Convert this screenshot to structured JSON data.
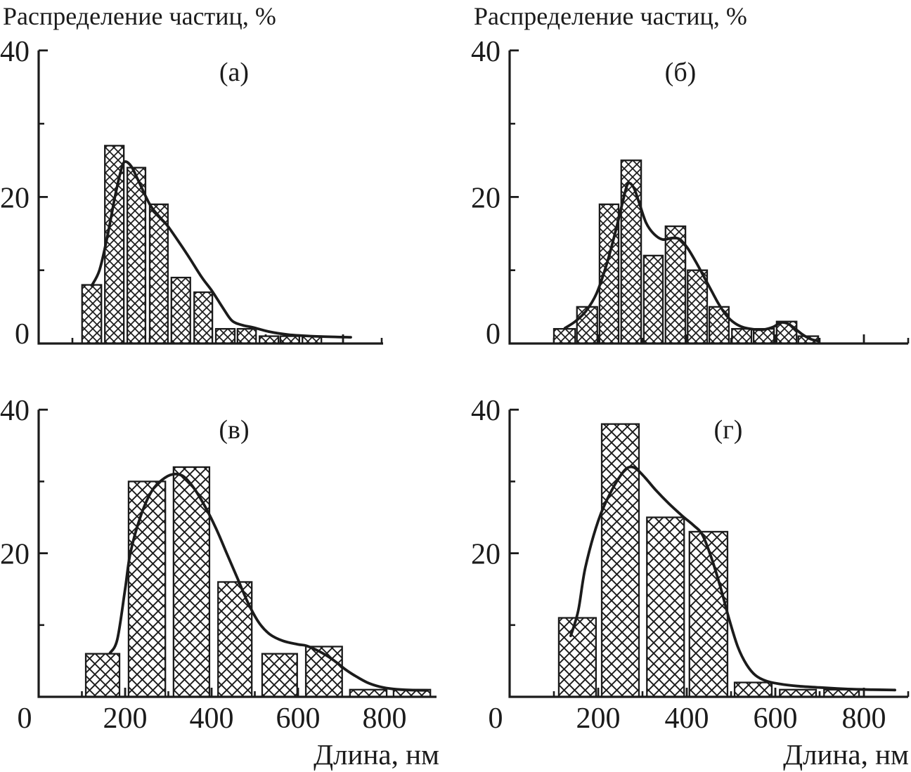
{
  "shared": {
    "y_axis_title": "Распределение частиц, %",
    "x_axis_title": "Длина, нм",
    "ink_color": "#1b1b1b",
    "background_color": "#ffffff"
  },
  "chart_data": {
    "type": "bar",
    "x_unit": "нм",
    "y_unit": "%",
    "legend": "none",
    "grid": false,
    "panels": [
      {
        "id": "a",
        "label": "(а)",
        "xlim": [
          0,
          900
        ],
        "ylim": [
          0,
          40
        ],
        "x_major_ticks": [
          200,
          400,
          600,
          800
        ],
        "x_minor_ticks": [
          100,
          300,
          500,
          700,
          900
        ],
        "y_labeled_ticks": [
          40,
          20,
          0
        ],
        "y_major_ticks": [
          20,
          40
        ],
        "y_minor_ticks": [
          10,
          30
        ],
        "x_tick_labels": [],
        "bars": [
          [
            125,
            175,
            8
          ],
          [
            184,
            233,
            27
          ],
          [
            242,
            289,
            24
          ],
          [
            300,
            347,
            19
          ],
          [
            356,
            405,
            9
          ],
          [
            415,
            462,
            7
          ],
          [
            471,
            520,
            2
          ],
          [
            527,
            575,
            2
          ],
          [
            584,
            633,
            1
          ],
          [
            638,
            687,
            1
          ],
          [
            695,
            744,
            1
          ]
        ],
        "curve": [
          [
            150,
            7.9
          ],
          [
            170,
            10
          ],
          [
            190,
            14.5
          ],
          [
            210,
            20
          ],
          [
            225,
            23.5
          ],
          [
            235,
            24.8
          ],
          [
            252,
            24.2
          ],
          [
            270,
            22.3
          ],
          [
            300,
            19
          ],
          [
            325,
            17.3
          ],
          [
            347,
            16
          ],
          [
            380,
            13.5
          ],
          [
            405,
            11.5
          ],
          [
            435,
            9
          ],
          [
            462,
            7.1
          ],
          [
            490,
            4.8
          ],
          [
            513,
            3.1
          ],
          [
            540,
            2.5
          ],
          [
            567,
            2.2
          ],
          [
            610,
            1.6
          ],
          [
            660,
            1.2
          ],
          [
            720,
            1
          ],
          [
            780,
            0.9
          ],
          [
            820,
            0.85
          ]
        ]
      },
      {
        "id": "b",
        "label": "(б)",
        "xlim": [
          0,
          900
        ],
        "ylim": [
          0,
          40
        ],
        "x_major_ticks": [
          200,
          400,
          600,
          800
        ],
        "x_minor_ticks": [
          100,
          300,
          500,
          700,
          900
        ],
        "y_labeled_ticks": [
          40,
          20,
          0
        ],
        "y_major_ticks": [
          20,
          40
        ],
        "y_minor_ticks": [
          10,
          30
        ],
        "x_tick_labels": [],
        "bars": [
          [
            100,
            148,
            2
          ],
          [
            152,
            198,
            5
          ],
          [
            203,
            246,
            19
          ],
          [
            252,
            297,
            25
          ],
          [
            303,
            346,
            12
          ],
          [
            352,
            397,
            16
          ],
          [
            402,
            446,
            10
          ],
          [
            451,
            495,
            5
          ],
          [
            502,
            546,
            2
          ],
          [
            551,
            597,
            2
          ],
          [
            603,
            648,
            3
          ],
          [
            652,
            697,
            1
          ]
        ],
        "curve": [
          [
            125,
            2.1
          ],
          [
            148,
            3
          ],
          [
            172,
            4.4
          ],
          [
            196,
            6.8
          ],
          [
            220,
            11
          ],
          [
            242,
            16
          ],
          [
            256,
            19.5
          ],
          [
            267,
            21.8
          ],
          [
            280,
            21.3
          ],
          [
            292,
            19.3
          ],
          [
            308,
            16.5
          ],
          [
            325,
            15
          ],
          [
            345,
            14.2
          ],
          [
            368,
            14.4
          ],
          [
            385,
            14.2
          ],
          [
            402,
            13
          ],
          [
            420,
            11.2
          ],
          [
            438,
            9.2
          ],
          [
            455,
            7.3
          ],
          [
            472,
            5.4
          ],
          [
            490,
            3.8
          ],
          [
            508,
            2.8
          ],
          [
            528,
            2.2
          ],
          [
            550,
            1.95
          ],
          [
            572,
            1.9
          ],
          [
            595,
            2.25
          ],
          [
            612,
            2.85
          ],
          [
            628,
            2.7
          ],
          [
            645,
            2
          ],
          [
            662,
            1.2
          ],
          [
            680,
            0.6
          ],
          [
            697,
            0.35
          ]
        ]
      },
      {
        "id": "v",
        "label": "(в)",
        "xlim": [
          0,
          920
        ],
        "ylim": [
          0,
          40
        ],
        "x_major_ticks": [
          200,
          400,
          600,
          800
        ],
        "x_minor_ticks": [
          100,
          300,
          500,
          700,
          900
        ],
        "y_labeled_ticks": [
          40,
          20
        ],
        "y_major_ticks": [
          20,
          40
        ],
        "y_minor_ticks": [
          10,
          30
        ],
        "x_tick_labels": [
          0,
          200,
          400,
          600,
          800
        ],
        "bars": [
          [
            109,
            187,
            6
          ],
          [
            208,
            293,
            30
          ],
          [
            312,
            395,
            32
          ],
          [
            415,
            493,
            16
          ],
          [
            517,
            598,
            6
          ],
          [
            618,
            702,
            7
          ],
          [
            720,
            805,
            1
          ],
          [
            821,
            906,
            1
          ]
        ],
        "curve": [
          [
            165,
            6.1
          ],
          [
            182,
            8
          ],
          [
            200,
            15
          ],
          [
            212,
            20
          ],
          [
            235,
            25
          ],
          [
            260,
            28.5
          ],
          [
            285,
            30.2
          ],
          [
            310,
            31
          ],
          [
            335,
            30.7
          ],
          [
            360,
            29
          ],
          [
            385,
            26.5
          ],
          [
            410,
            23.5
          ],
          [
            435,
            20
          ],
          [
            460,
            16.5
          ],
          [
            485,
            13
          ],
          [
            510,
            10.3
          ],
          [
            535,
            8.7
          ],
          [
            565,
            7.8
          ],
          [
            600,
            7.3
          ],
          [
            620,
            7.1
          ],
          [
            650,
            6.3
          ],
          [
            680,
            5.2
          ],
          [
            710,
            3.8
          ],
          [
            730,
            3
          ],
          [
            760,
            2
          ],
          [
            790,
            1.4
          ],
          [
            820,
            1.1
          ],
          [
            860,
            0.95
          ],
          [
            900,
            0.9
          ]
        ]
      },
      {
        "id": "g",
        "label": "(г)",
        "xlim": [
          0,
          900
        ],
        "ylim": [
          0,
          40
        ],
        "x_major_ticks": [
          200,
          400,
          600,
          800
        ],
        "x_minor_ticks": [
          100,
          300,
          500,
          700,
          900
        ],
        "y_labeled_ticks": [
          40,
          20
        ],
        "y_major_ticks": [
          20,
          40
        ],
        "y_minor_ticks": [
          10,
          30
        ],
        "x_tick_labels": [
          0,
          200,
          400,
          600,
          800
        ],
        "bars": [
          [
            111,
            195,
            11
          ],
          [
            208,
            292,
            38
          ],
          [
            310,
            394,
            25
          ],
          [
            406,
            492,
            23
          ],
          [
            508,
            592,
            2
          ],
          [
            610,
            692,
            1
          ],
          [
            710,
            789,
            1
          ]
        ],
        "curve": [
          [
            138,
            8.5
          ],
          [
            155,
            12
          ],
          [
            171,
            18
          ],
          [
            200,
            24.5
          ],
          [
            230,
            28.7
          ],
          [
            255,
            31.2
          ],
          [
            270,
            32
          ],
          [
            285,
            31.8
          ],
          [
            305,
            30.6
          ],
          [
            330,
            28.8
          ],
          [
            360,
            26.9
          ],
          [
            390,
            25.2
          ],
          [
            415,
            23.9
          ],
          [
            435,
            22.6
          ],
          [
            455,
            19.5
          ],
          [
            475,
            15.5
          ],
          [
            495,
            11
          ],
          [
            515,
            7
          ],
          [
            535,
            4.5
          ],
          [
            555,
            3
          ],
          [
            580,
            2.2
          ],
          [
            610,
            1.8
          ],
          [
            650,
            1.5
          ],
          [
            700,
            1.3
          ],
          [
            760,
            1.1
          ],
          [
            820,
            1
          ],
          [
            870,
            0.95
          ]
        ]
      }
    ]
  }
}
